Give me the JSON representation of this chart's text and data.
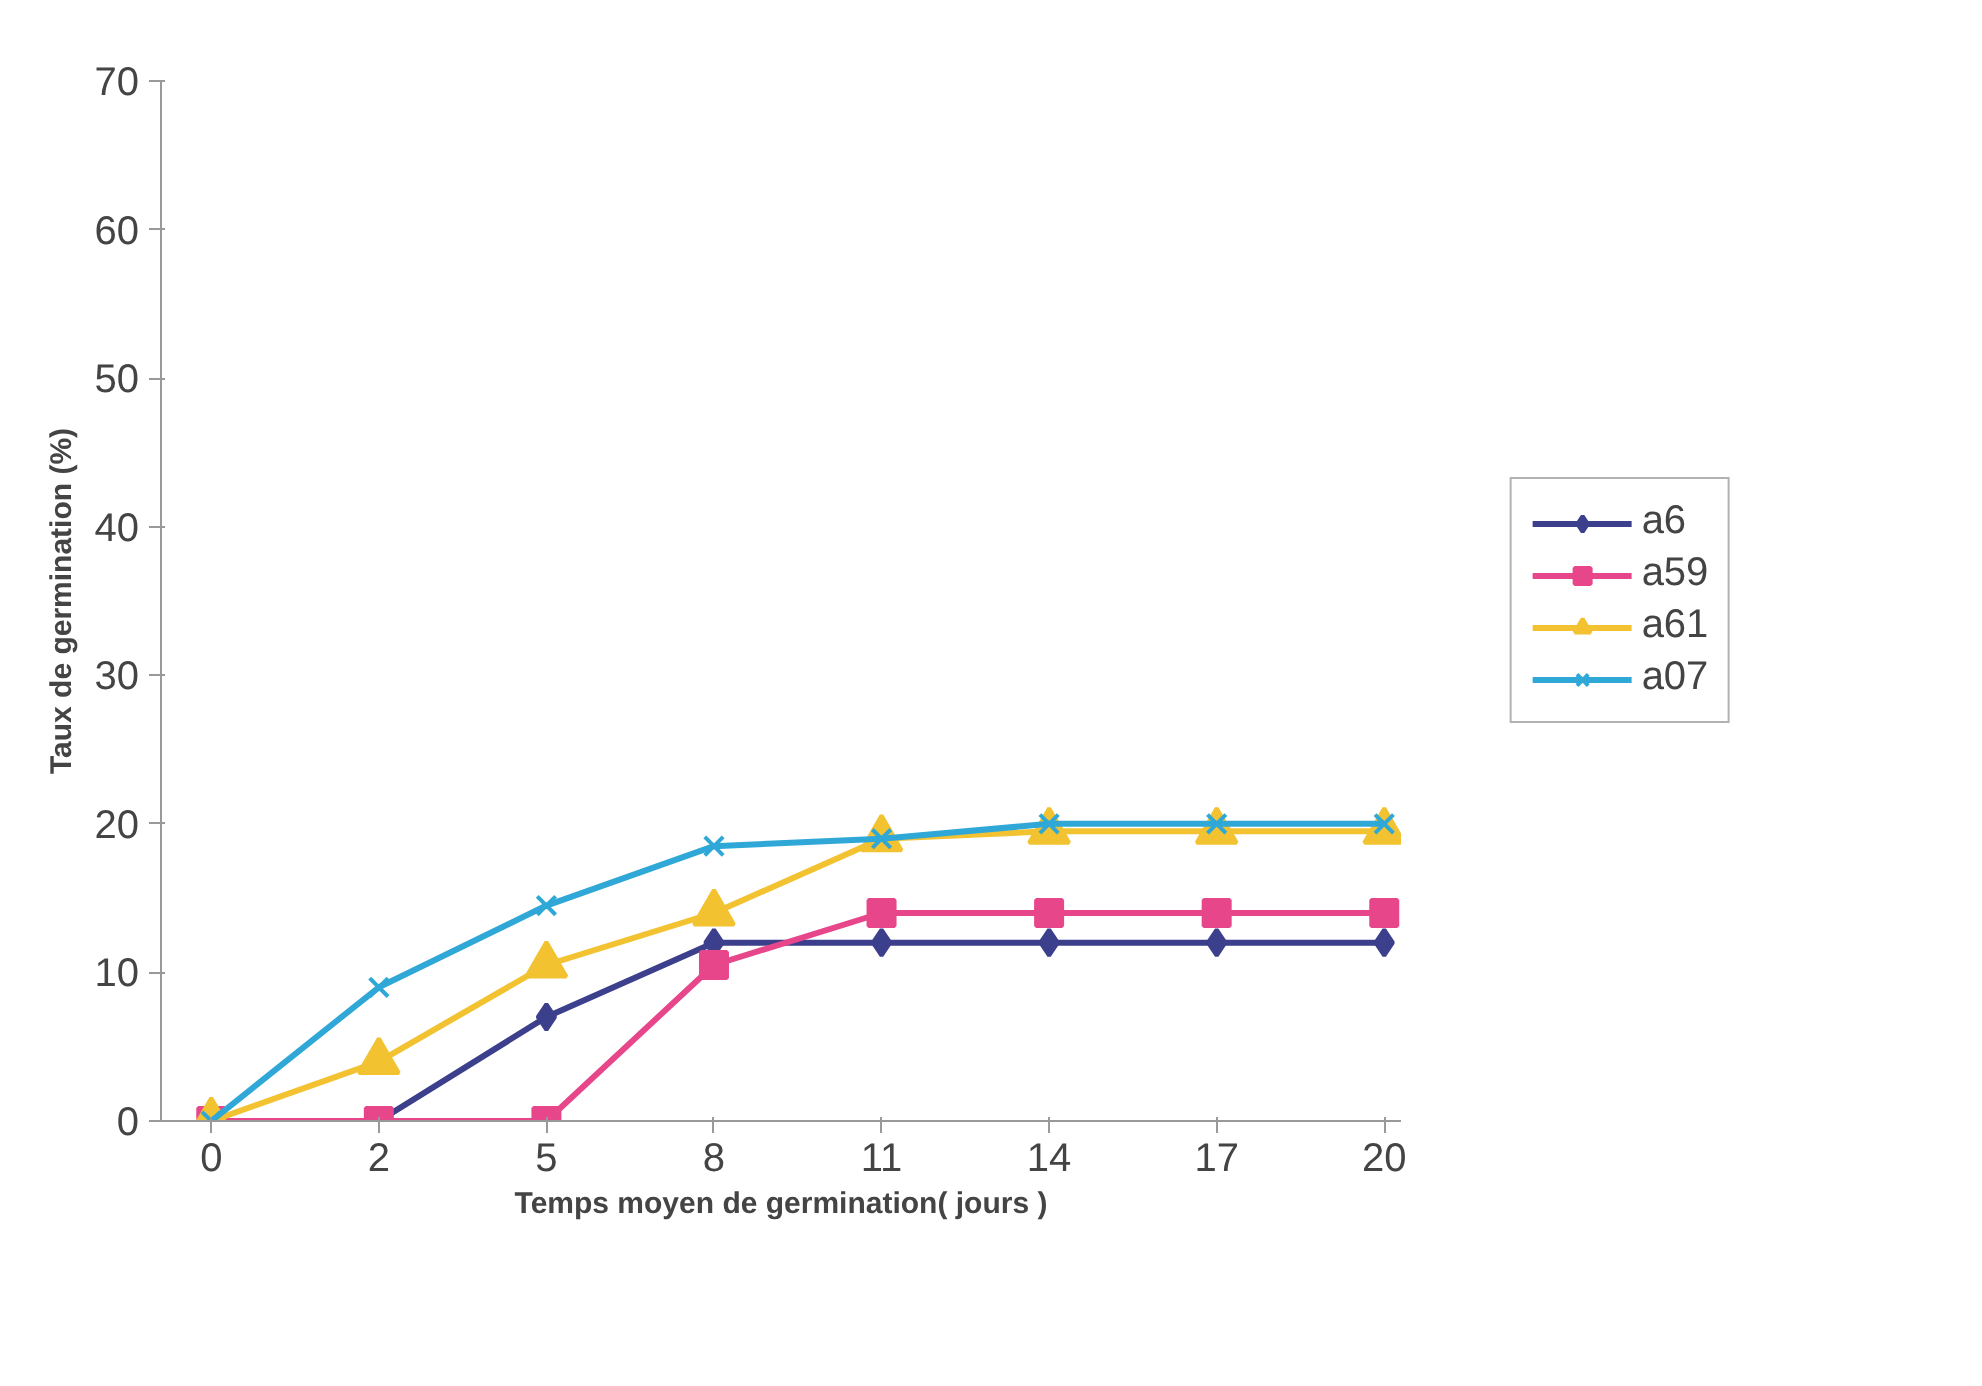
{
  "chart_data": {
    "type": "line",
    "xlabel": "Temps moyen de germination( jours )",
    "ylabel": "Taux de germination (%)",
    "categories": [
      "0",
      "2",
      "5",
      "8",
      "11",
      "14",
      "17",
      "20"
    ],
    "ylim": [
      0,
      70
    ],
    "yticks": [
      0,
      10,
      20,
      30,
      40,
      50,
      60,
      70
    ],
    "grid": false,
    "legend": "right",
    "series": [
      {
        "name": "a6",
        "color": "#3b3f8c",
        "marker": "diamond",
        "values": [
          0,
          0,
          7,
          12,
          12,
          12,
          12,
          12
        ]
      },
      {
        "name": "a59",
        "color": "#e8468a",
        "marker": "square",
        "values": [
          0,
          0,
          0,
          10.5,
          14,
          14,
          14,
          14
        ]
      },
      {
        "name": "a61",
        "color": "#f2c230",
        "marker": "triangle",
        "values": [
          0,
          4,
          10.5,
          14,
          19,
          19.5,
          19.5,
          19.5
        ]
      },
      {
        "name": "a07",
        "color": "#2fa8d8",
        "marker": "cross",
        "values": [
          0,
          9,
          14.5,
          18.5,
          19,
          20,
          20,
          20
        ]
      }
    ]
  }
}
